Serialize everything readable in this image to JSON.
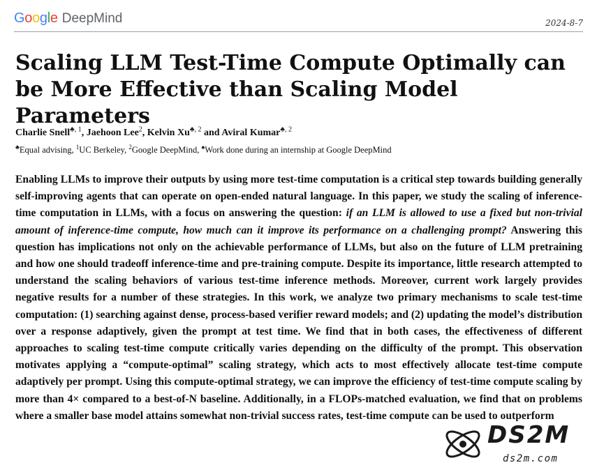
{
  "header": {
    "logo_google": "Google",
    "logo_deepmind": "DeepMind",
    "date": "2024-8-7"
  },
  "paper": {
    "title": "Scaling LLM Test-Time Compute Optimally can be More Effective than Scaling Model Parameters",
    "authors": [
      {
        "name": "Charlie Snell",
        "marks": "♣, 1",
        "sep": ", "
      },
      {
        "name": "Jaehoon Lee",
        "marks": "2",
        "sep": ", "
      },
      {
        "name": "Kelvin Xu",
        "marks": "♣, 2",
        "sep": " and "
      },
      {
        "name": "Aviral Kumar",
        "marks": "♣, 2",
        "sep": ""
      }
    ],
    "affiliations": {
      "equal_mark": "♣",
      "equal_text": "Equal advising, ",
      "ucb_mark": "1",
      "ucb_text": "UC Berkeley, ",
      "gdm_mark": "2",
      "gdm_text": "Google DeepMind, ",
      "intern_mark": "♠",
      "intern_text": "Work done during an internship at Google DeepMind"
    },
    "abstract": {
      "part1": "Enabling LLMs to improve their outputs by using more test-time computation is a critical step towards building generally self-improving agents that can operate on open-ended natural language. In this paper, we study the scaling of inference-time computation in LLMs, with a focus on answering the question: ",
      "italic": "if an LLM is allowed to use a fixed but non-trivial amount of inference-time compute, how much can it improve its performance on a challenging prompt?",
      "part2": " Answering this question has implications not only on the achievable performance of LLMs, but also on the future of LLM pretraining and how one should tradeoff inference-time and pre-training compute. Despite its importance, little research attempted to understand the scaling behaviors of various test-time inference methods. Moreover, current work largely provides negative results for a number of these strategies. In this work, we analyze two primary mechanisms to scale test-time computation: (1) searching against dense, process-based verifier reward models; and (2) updating the model’s distribution over a response adaptively, given the prompt at test time. We find that in both cases, the effectiveness of different approaches to scaling test-time compute critically varies depending on the difficulty of the prompt. This observation motivates applying a “compute-optimal” scaling strategy, which acts to most effectively allocate test-time compute adaptively per prompt. Using this compute-optimal strategy, we can improve the efficiency of test-time compute scaling by more than 4× compared to a best-of-N baseline. Additionally, in a FLOPs-matched evaluation, we find that on problems where a smaller base model attains somewhat non-trivial success rates, test-time compute can be used to outperform"
    }
  },
  "watermark": {
    "text": "DS2M",
    "sub": "ds2m.com"
  },
  "colors": {
    "google_blue": "#4285F4",
    "google_red": "#EA4335",
    "google_yellow": "#FBBC05",
    "google_green": "#34A853",
    "deepmind_gray": "#5f6368"
  }
}
